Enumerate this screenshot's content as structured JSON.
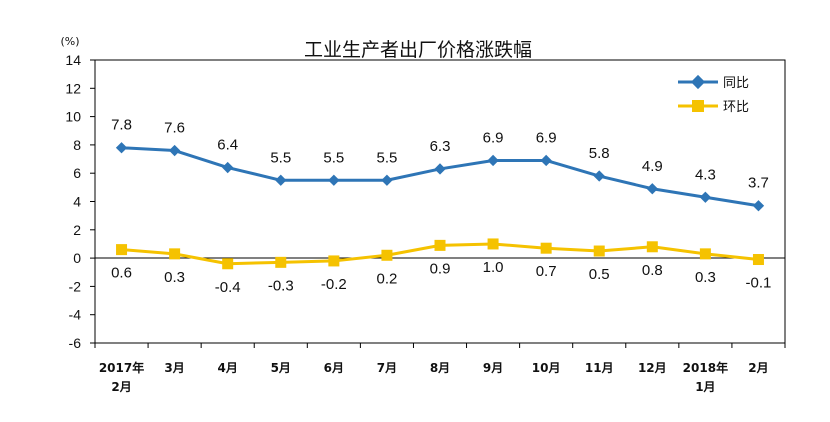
{
  "chart_data": {
    "type": "line",
    "title": "工业生产者出厂价格涨跌幅",
    "unit_label": "(%)",
    "ylim": [
      -6,
      14
    ],
    "ytick_step": 2,
    "grid": false,
    "legend_position": "top-right",
    "categories": [
      {
        "line1": "2017年",
        "line2": "2月"
      },
      {
        "line1": "3月",
        "line2": ""
      },
      {
        "line1": "4月",
        "line2": ""
      },
      {
        "line1": "5月",
        "line2": ""
      },
      {
        "line1": "6月",
        "line2": ""
      },
      {
        "line1": "7月",
        "line2": ""
      },
      {
        "line1": "8月",
        "line2": ""
      },
      {
        "line1": "9月",
        "line2": ""
      },
      {
        "line1": "10月",
        "line2": ""
      },
      {
        "line1": "11月",
        "line2": ""
      },
      {
        "line1": "12月",
        "line2": ""
      },
      {
        "line1": "2018年",
        "line2": "1月"
      },
      {
        "line1": "2月",
        "line2": ""
      }
    ],
    "series": [
      {
        "name": "同比",
        "color": "#2E75B6",
        "marker": "diamond",
        "values": [
          7.8,
          7.6,
          6.4,
          5.5,
          5.5,
          5.5,
          6.3,
          6.9,
          6.9,
          5.8,
          4.9,
          4.3,
          3.7
        ],
        "labels": [
          "7.8",
          "7.6",
          "6.4",
          "5.5",
          "5.5",
          "5.5",
          "6.3",
          "6.9",
          "6.9",
          "5.8",
          "4.9",
          "4.3",
          "3.7"
        ]
      },
      {
        "name": "环比",
        "color": "#F5C200",
        "marker": "square",
        "values": [
          0.6,
          0.3,
          -0.4,
          -0.3,
          -0.2,
          0.2,
          0.9,
          1.0,
          0.7,
          0.5,
          0.8,
          0.3,
          -0.1
        ],
        "labels": [
          "0.6",
          "0.3",
          "-0.4",
          "-0.3",
          "-0.2",
          "0.2",
          "0.9",
          "1.0",
          "0.7",
          "0.5",
          "0.8",
          "0.3",
          "-0.1"
        ]
      }
    ]
  }
}
